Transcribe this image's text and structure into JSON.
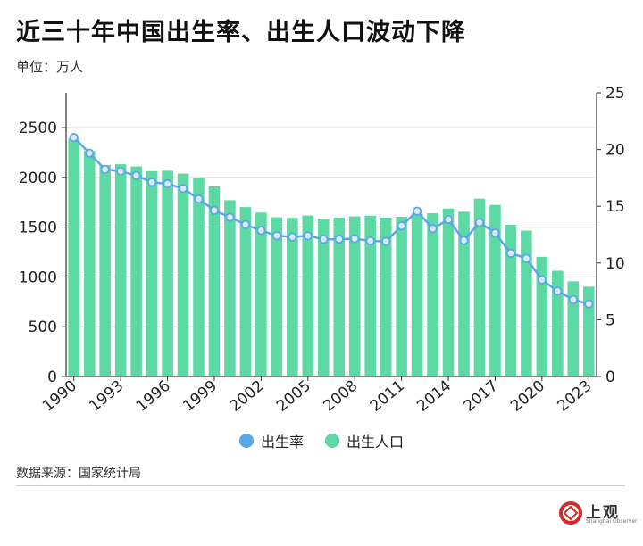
{
  "title": "近三十年中国出生率、出生人口波动下降",
  "unit_label": "单位：万人",
  "source": "数据来源：国家统计局",
  "logo": {
    "text": "上观",
    "subtext": "Shanghai Observer",
    "color": "#d22b2b"
  },
  "colors": {
    "bar": "#5dd9a3",
    "line": "#5ba7e8",
    "point_fill": "#dbe9ff",
    "axis": "#333333",
    "grid": "#d7d7d7"
  },
  "chart_data": {
    "type": "bar+line",
    "x": [
      1990,
      1991,
      1992,
      1993,
      1994,
      1995,
      1996,
      1997,
      1998,
      1999,
      2000,
      2001,
      2002,
      2003,
      2004,
      2005,
      2006,
      2007,
      2008,
      2009,
      2010,
      2011,
      2012,
      2013,
      2014,
      2015,
      2016,
      2017,
      2018,
      2019,
      2020,
      2021,
      2022,
      2023
    ],
    "x_tick_labels": [
      "1990",
      "1993",
      "1996",
      "1999",
      "2002",
      "2005",
      "2008",
      "2011",
      "2014",
      "2017",
      "2020",
      "2023"
    ],
    "legend": [
      "出生率",
      "出生人口"
    ],
    "left_axis": {
      "ticks": [
        0,
        500,
        1000,
        1500,
        2000,
        2500
      ],
      "range": [
        0,
        2850
      ]
    },
    "right_axis": {
      "ticks": [
        0,
        5,
        10,
        15,
        20,
        25
      ],
      "range": [
        0,
        25
      ]
    },
    "series": [
      {
        "name": "出生人口",
        "type": "bar",
        "axis": "left",
        "values": [
          2391,
          2265,
          2125,
          2132,
          2110,
          2063,
          2067,
          2038,
          1991,
          1909,
          1771,
          1702,
          1647,
          1599,
          1593,
          1617,
          1585,
          1595,
          1608,
          1615,
          1596,
          1604,
          1635,
          1640,
          1687,
          1655,
          1786,
          1723,
          1523,
          1465,
          1202,
          1062,
          956,
          902
        ]
      },
      {
        "name": "出生率",
        "type": "line",
        "axis": "right",
        "values": [
          21.06,
          19.68,
          18.24,
          18.09,
          17.7,
          17.12,
          16.98,
          16.57,
          15.64,
          14.64,
          14.03,
          13.38,
          12.86,
          12.41,
          12.29,
          12.4,
          12.09,
          12.1,
          12.14,
          11.95,
          11.9,
          13.27,
          14.57,
          13.03,
          13.83,
          11.99,
          13.57,
          12.64,
          10.86,
          10.41,
          8.52,
          7.52,
          6.77,
          6.39
        ]
      }
    ]
  }
}
